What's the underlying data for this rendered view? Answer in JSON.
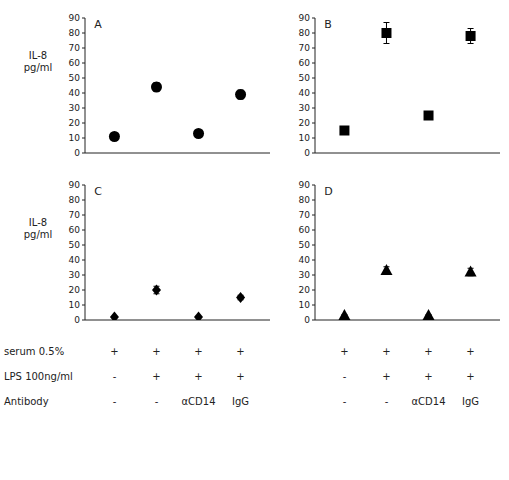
{
  "chart_data": [
    {
      "type": "scatter",
      "title": "A",
      "ylabel": "IL-8\npg/ml",
      "x": [
        1,
        2,
        3,
        4
      ],
      "values": [
        11,
        44,
        13,
        39
      ],
      "errors": [
        1.0,
        3.0,
        1.5,
        3.0
      ],
      "marker": "circle",
      "color": "black",
      "xlim": [
        0.3,
        4.7
      ],
      "ylim": [
        0,
        90
      ],
      "yticks": [
        0,
        10,
        20,
        30,
        40,
        50,
        60,
        70,
        80,
        90
      ],
      "grid": false,
      "tick_labels": "y"
    },
    {
      "type": "scatter",
      "title": "B",
      "x": [
        1,
        2,
        3,
        4
      ],
      "values": [
        15,
        80,
        25,
        78
      ],
      "errors": [
        1.5,
        7.0,
        2.0,
        5.0
      ],
      "marker": "square",
      "color": "black",
      "xlim": [
        0.3,
        4.7
      ],
      "ylim": [
        0,
        90
      ],
      "yticks": [
        0,
        10,
        20,
        30,
        40,
        50,
        60,
        70,
        80,
        90
      ],
      "grid": false,
      "tick_labels": "y"
    },
    {
      "type": "scatter",
      "title": "C",
      "ylabel": "IL-8\npg/ml",
      "x": [
        1,
        2,
        3,
        4
      ],
      "values": [
        2,
        20,
        2,
        15
      ],
      "errors": [
        0.3,
        2.5,
        0.3,
        1.5
      ],
      "marker": "diamond",
      "color": "black",
      "xlim": [
        0.3,
        4.7
      ],
      "ylim": [
        0,
        90
      ],
      "yticks": [
        0,
        10,
        20,
        30,
        40,
        50,
        60,
        70,
        80,
        90
      ],
      "grid": false,
      "tick_labels": "y",
      "table": {
        "row_names": [
          "serum 0.5%",
          "LPS 100ng/ml",
          "Antibody"
        ],
        "cells": [
          [
            "+",
            "+",
            "+",
            "+"
          ],
          [
            "-",
            "+",
            "+",
            "+"
          ],
          [
            "-",
            "-",
            "αCD14",
            "IgG"
          ]
        ]
      }
    },
    {
      "type": "scatter",
      "title": "D",
      "x": [
        1,
        2,
        3,
        4
      ],
      "values": [
        3,
        33,
        3,
        32
      ],
      "errors": [
        0.5,
        2.5,
        0.5,
        2.5
      ],
      "marker": "triangle",
      "color": "black",
      "xlim": [
        0.3,
        4.7
      ],
      "ylim": [
        0,
        90
      ],
      "yticks": [
        0,
        10,
        20,
        30,
        40,
        50,
        60,
        70,
        80,
        90
      ],
      "grid": false,
      "tick_labels": "y",
      "table": {
        "cells": [
          [
            "+",
            "+",
            "+",
            "+"
          ],
          [
            "-",
            "+",
            "+",
            "+"
          ],
          [
            "-",
            "-",
            "αCD14",
            "IgG"
          ]
        ]
      }
    }
  ]
}
